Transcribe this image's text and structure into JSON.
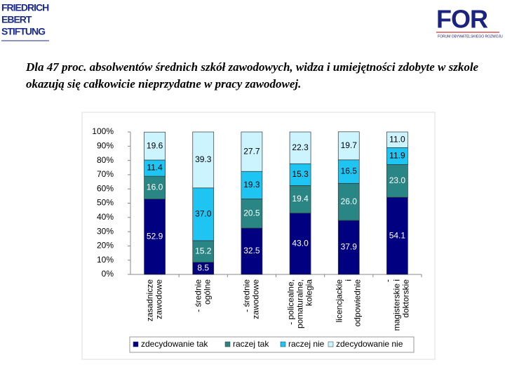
{
  "header": {
    "left_logo": [
      "FRIEDRICH",
      "EBERT",
      "STIFTUNG"
    ],
    "right_logo": "FOR",
    "right_logo_subtitle": "FORUM OBYWATELSKIEGO ROZWOJU"
  },
  "chart_data": {
    "type": "stacked_bar",
    "title": "Dla 47 proc. absolwentów średnich szkół zawodowych, widza i umiejętności zdobyte w szkole okazują się całkowicie nieprzydatne w pracy zawodowej.",
    "categories": [
      [
        "zasadnicze",
        "zawodowe"
      ],
      [
        "- średnie",
        "ogólne"
      ],
      [
        "- średnie",
        "zawodowe"
      ],
      [
        "- policealne,",
        "pomaturalne,",
        "kolegia"
      ],
      [
        "licencjackie",
        "i",
        "odpowiednie"
      ],
      [
        "-",
        "magisterskie i",
        "doktorskie"
      ]
    ],
    "series": [
      {
        "name": "zdecydowanie tak",
        "color": "#000080",
        "label_color": "#ffffff",
        "values": [
          52.9,
          8.5,
          32.5,
          43.0,
          37.9,
          54.1
        ],
        "value_labels": [
          "52.9",
          "8.5",
          "32.5",
          "43.0",
          "37.9",
          "54.1"
        ]
      },
      {
        "name": "raczej tak",
        "color": "#2a8585",
        "label_color": "#ffffff",
        "values": [
          16.0,
          15.2,
          20.5,
          19.4,
          26.0,
          23.0
        ],
        "value_labels": [
          "16.0",
          "15.2",
          "20.5",
          "19.4",
          "26.0",
          "23.0"
        ]
      },
      {
        "name": "raczej nie",
        "color": "#1ec5f2",
        "label_color": "#000000",
        "values": [
          11.4,
          37.0,
          19.3,
          15.3,
          16.5,
          11.9
        ],
        "value_labels": [
          "11.4",
          "37.0",
          "19.3",
          "15.3",
          "16.5",
          "11.9"
        ]
      },
      {
        "name": "zdecydowanie nie",
        "color": "#ccf4ff",
        "label_color": "#000000",
        "values": [
          19.6,
          39.3,
          27.7,
          22.3,
          19.7,
          11.0
        ],
        "value_labels": [
          "19.6",
          "39.3",
          "27.7",
          "22.3",
          "19.7",
          "11.0"
        ]
      }
    ],
    "ylim": [
      0,
      100
    ],
    "yticks": [
      {
        "value": 0,
        "label": "0%"
      },
      {
        "value": 10,
        "label": "10%"
      },
      {
        "value": 20,
        "label": "20%"
      },
      {
        "value": 30,
        "label": "30%"
      },
      {
        "value": 40,
        "label": "40%"
      },
      {
        "value": 50,
        "label": "50%"
      },
      {
        "value": 60,
        "label": "60%"
      },
      {
        "value": 70,
        "label": "70%"
      },
      {
        "value": 80,
        "label": "80%"
      },
      {
        "value": 90,
        "label": "90%"
      },
      {
        "value": 100,
        "label": "100%"
      }
    ],
    "legend": "bottom"
  }
}
